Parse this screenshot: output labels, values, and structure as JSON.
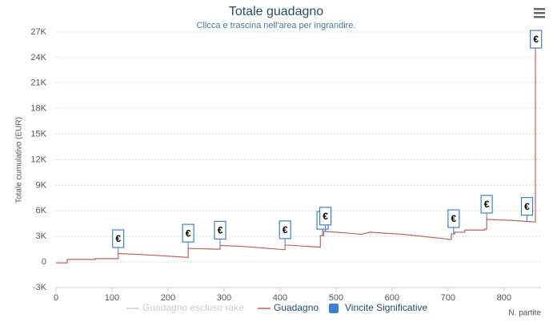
{
  "chart_data": {
    "type": "line",
    "title": "Totale guadagno",
    "subtitle": "Clicca e trascina nell'area per ingrandire.",
    "y_label": "Totale cumulativo (EUR)",
    "x_label": "N. partite",
    "xlim": [
      0,
      866
    ],
    "xticks": [
      0,
      100,
      200,
      300,
      400,
      500,
      600,
      700,
      800
    ],
    "ylim": [
      -3000,
      27000
    ],
    "yticks": [
      {
        "value": -3000,
        "label": "-3K"
      },
      0,
      {
        "value": 3000,
        "label": "3K"
      },
      {
        "value": 6000,
        "label": "6K"
      },
      {
        "value": 9000,
        "label": "9K"
      },
      {
        "value": 12000,
        "label": "12K"
      },
      {
        "value": 15000,
        "label": "15K"
      },
      {
        "value": 18000,
        "label": "18K"
      },
      {
        "value": 21000,
        "label": "21K"
      },
      {
        "value": 24000,
        "label": "24K"
      },
      {
        "value": 27000,
        "label": "27K"
      }
    ],
    "grid": true,
    "series": [
      {
        "name": "Guadagno escluso rake",
        "color": "#cccccc",
        "visible": false
      },
      {
        "name": "Guadagno",
        "color": "#c0605c",
        "visible": true,
        "x": [
          0,
          20,
          20,
          70,
          70,
          111,
          111,
          160,
          233,
          236,
          236,
          288,
          293,
          293,
          340,
          407,
          409,
          409,
          470,
          472,
          472,
          478,
          478,
          520,
          545,
          560,
          620,
          705,
          706,
          706,
          712,
          712,
          730,
          730,
          765,
          765,
          769,
          769,
          810,
          855,
          856,
          856,
          866
        ],
        "values": [
          -100,
          -100,
          300,
          300,
          400,
          400,
          1000,
          850,
          550,
          550,
          1600,
          1500,
          1500,
          1950,
          1800,
          1450,
          1450,
          2000,
          1750,
          1750,
          3100,
          3100,
          3600,
          3400,
          3250,
          3500,
          3250,
          2650,
          2650,
          3300,
          3300,
          3500,
          3500,
          3750,
          3750,
          3850,
          3850,
          5000,
          4900,
          4700,
          4700,
          26000,
          26000
        ]
      },
      {
        "name": "Vincite Significative",
        "color": "#3a7fd5",
        "type": "flags",
        "flag_text": "€",
        "x": [
          111,
          236,
          293,
          409,
          476,
          481,
          710,
          769,
          841,
          857
        ],
        "values": [
          950,
          1600,
          1950,
          2000,
          3100,
          3600,
          3300,
          5000,
          4750,
          26000
        ]
      }
    ]
  }
}
